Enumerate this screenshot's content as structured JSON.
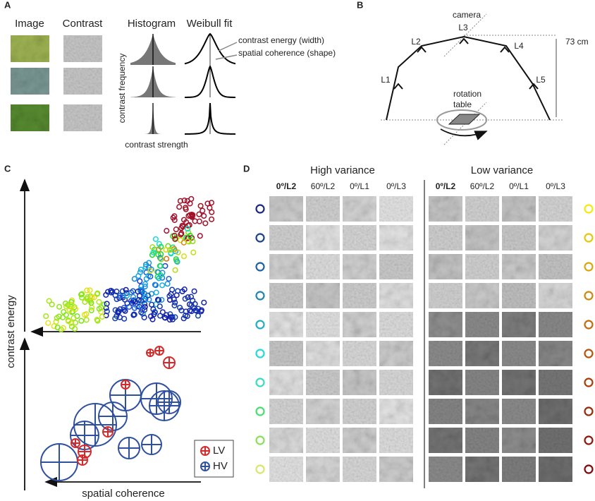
{
  "panels": {
    "a": {
      "label": "A",
      "columns": [
        "Image",
        "Contrast",
        "Histogram",
        "Weibull fit"
      ],
      "annotations": [
        "contrast energy (width)",
        "spatial coherence (shape)"
      ],
      "y_axis": "contrast frequency",
      "x_axis": "contrast strength"
    },
    "b": {
      "label": "B",
      "camera": "camera",
      "lights": [
        "L1",
        "L2",
        "L3",
        "L4",
        "L5"
      ],
      "distance": "73 cm",
      "table": [
        "rotation",
        "table"
      ]
    },
    "c": {
      "label": "C",
      "y_axis": "contrast energy",
      "x_axis": "spatial coherence",
      "legend": [
        "LV",
        "HV"
      ]
    },
    "d": {
      "label": "D",
      "groups": [
        {
          "title": "High variance",
          "columns": [
            "0º/L2",
            "60º/L2",
            "0º/L1",
            "0º/L3"
          ]
        },
        {
          "title": "Low variance",
          "columns": [
            "0º/L2",
            "60º/L2",
            "0º/L1",
            "0º/L3"
          ]
        }
      ]
    }
  }
}
